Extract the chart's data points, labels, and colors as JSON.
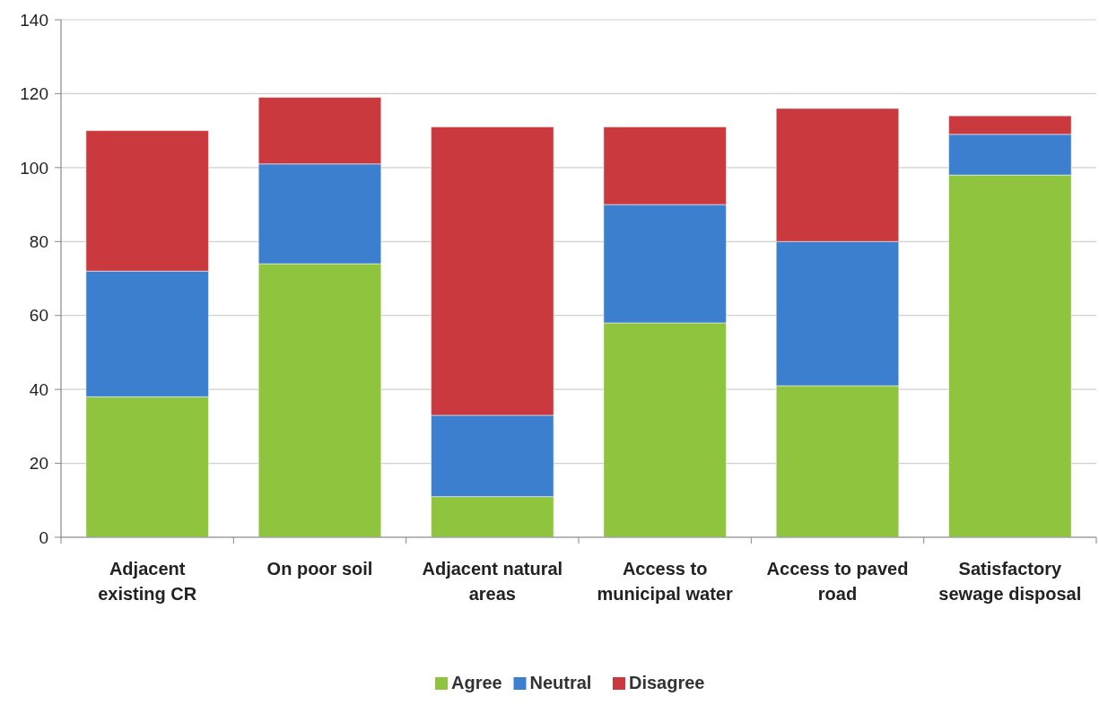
{
  "chart_data": {
    "type": "bar",
    "stacked": true,
    "categories": [
      "Adjacent existing CR",
      "On poor soil",
      "Adjacent natural areas",
      "Access to municipal water",
      "Access to paved road",
      "Satisfactory sewage disposal"
    ],
    "series": [
      {
        "name": "Agree",
        "color": "#8fc43f",
        "values": [
          38,
          74,
          11,
          58,
          41,
          98
        ]
      },
      {
        "name": "Neutral",
        "color": "#3d7fcf",
        "values": [
          34,
          27,
          22,
          32,
          39,
          11
        ]
      },
      {
        "name": "Disagree",
        "color": "#c9393e",
        "values": [
          38,
          18,
          78,
          21,
          36,
          5
        ]
      }
    ],
    "ylim": [
      0,
      140
    ],
    "yticks": [
      0,
      20,
      40,
      60,
      80,
      100,
      120,
      140
    ],
    "grid": "y",
    "legend": "bottom"
  }
}
